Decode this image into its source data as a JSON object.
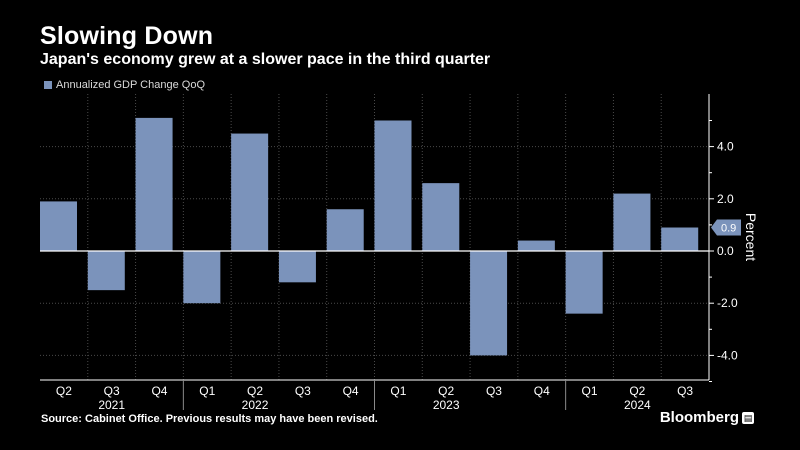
{
  "colors": {
    "background": "#000000",
    "bar": "#7b93bb",
    "grid": "#4a4a4a",
    "text": "#ffffff",
    "last_value_badge": "#7b93bb"
  },
  "header": {
    "title": "Slowing Down",
    "subtitle": "Japan's economy grew at a slower pace in the third quarter"
  },
  "footer": {
    "source": "Source: Cabinet Office. Previous results may have been revised.",
    "brand": "Bloomberg",
    "brand_icon": "bloomberg-terminal-icon"
  },
  "chart_data": {
    "type": "bar",
    "title": "Slowing Down",
    "subtitle": "Japan's economy grew at a slower pace in the third quarter",
    "legend": {
      "position": "top-left",
      "entries": [
        "Annualized GDP Change QoQ"
      ]
    },
    "categories": [
      "Q2",
      "Q3",
      "Q4",
      "Q1",
      "Q2",
      "Q3",
      "Q4",
      "Q1",
      "Q2",
      "Q3",
      "Q4",
      "Q1",
      "Q2",
      "Q3"
    ],
    "year_labels": [
      {
        "label": "2021",
        "center_index": 1
      },
      {
        "label": "2022",
        "center_index": 4
      },
      {
        "label": "2023",
        "center_index": 8
      },
      {
        "label": "2024",
        "center_index": 12
      }
    ],
    "year_dividers_before_index": [
      3,
      7,
      11
    ],
    "series": [
      {
        "name": "Annualized GDP Change QoQ",
        "values": [
          1.9,
          -1.5,
          5.1,
          -2.0,
          4.5,
          -1.2,
          1.6,
          5.0,
          2.6,
          -4.0,
          0.4,
          -2.4,
          2.2,
          0.9
        ]
      }
    ],
    "ylabel": "Percent",
    "xlabel": "",
    "ylim": [
      -5.0,
      6.0
    ],
    "yticks": [
      -4.0,
      -2.0,
      0.0,
      2.0,
      4.0
    ],
    "ytick_labels": [
      "-4.0",
      "-2.0",
      "0.0",
      "2.0",
      "4.0"
    ],
    "y_axis_position": "right",
    "grid": true,
    "last_value_label": "0.9"
  }
}
